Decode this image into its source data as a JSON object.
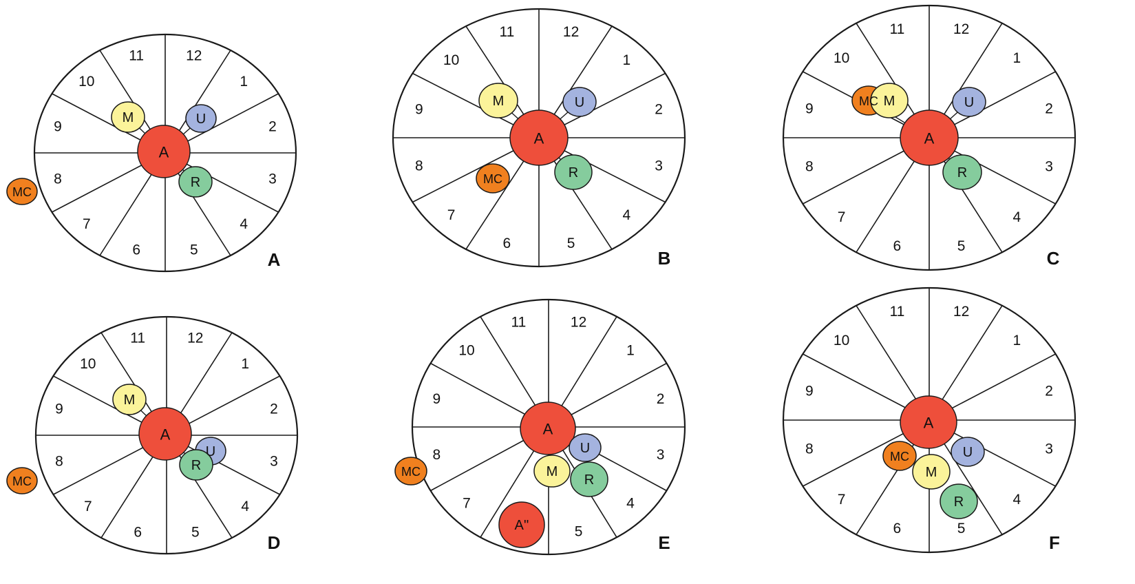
{
  "colors": {
    "A": "#ee4f3b",
    "A''": "#ee4f3b",
    "M": "#fbf39a",
    "U": "#a4b3df",
    "R": "#85cc9d",
    "MC": "#f0801f"
  },
  "hours": [
    "12",
    "1",
    "2",
    "3",
    "4",
    "5",
    "6",
    "7",
    "8",
    "9",
    "10",
    "11"
  ],
  "panels": [
    {
      "id": "A",
      "letter": "A",
      "nodes": [
        {
          "label": "A"
        },
        {
          "label": "M"
        },
        {
          "label": "U"
        },
        {
          "label": "R"
        },
        {
          "label": "MC"
        }
      ]
    },
    {
      "id": "B",
      "letter": "B",
      "nodes": [
        {
          "label": "A"
        },
        {
          "label": "M"
        },
        {
          "label": "U"
        },
        {
          "label": "R"
        },
        {
          "label": "MC"
        }
      ]
    },
    {
      "id": "C",
      "letter": "C",
      "nodes": [
        {
          "label": "A"
        },
        {
          "label": "MC"
        },
        {
          "label": "M"
        },
        {
          "label": "U"
        },
        {
          "label": "R"
        }
      ]
    },
    {
      "id": "D",
      "letter": "D",
      "nodes": [
        {
          "label": "A"
        },
        {
          "label": "M"
        },
        {
          "label": "U"
        },
        {
          "label": "R"
        },
        {
          "label": "MC"
        }
      ]
    },
    {
      "id": "E",
      "letter": "E",
      "nodes": [
        {
          "label": "A"
        },
        {
          "label": "U"
        },
        {
          "label": "M"
        },
        {
          "label": "R"
        },
        {
          "label": "A''"
        },
        {
          "label": "MC"
        }
      ]
    },
    {
      "id": "F",
      "letter": "F",
      "nodes": [
        {
          "label": "A"
        },
        {
          "label": "MC"
        },
        {
          "label": "U"
        },
        {
          "label": "M"
        },
        {
          "label": "R"
        }
      ]
    }
  ]
}
